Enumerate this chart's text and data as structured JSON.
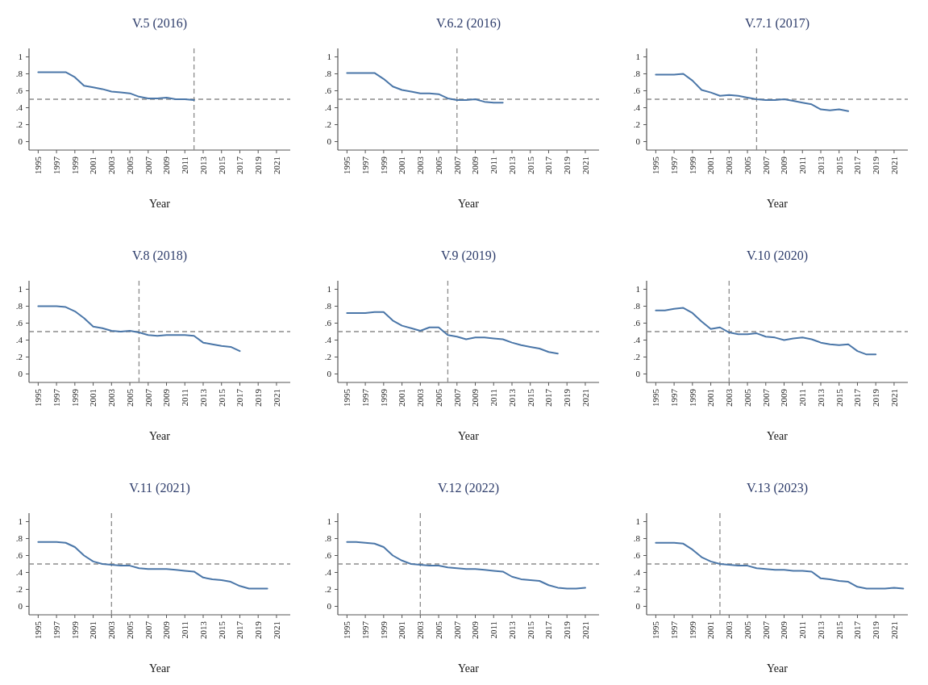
{
  "chart_data": [
    {
      "type": "line",
      "title": "V.5 (2016)",
      "xlabel": "Year",
      "x": [
        1995,
        1996,
        1997,
        1998,
        1999,
        2000,
        2001,
        2002,
        2003,
        2004,
        2005,
        2006,
        2007,
        2008,
        2009,
        2010,
        2011,
        2012
      ],
      "series": [
        {
          "color": "#4a76a8",
          "values": [
            0.82,
            0.82,
            0.82,
            0.82,
            0.76,
            0.66,
            0.64,
            0.62,
            0.59,
            0.58,
            0.57,
            0.53,
            0.51,
            0.51,
            0.52,
            0.5,
            0.5,
            0.49
          ]
        }
      ],
      "xlim": [
        1994,
        2022.5
      ],
      "xticks": [
        1995,
        1997,
        1999,
        2001,
        2003,
        2005,
        2007,
        2009,
        2011,
        2013,
        2015,
        2017,
        2019,
        2021
      ],
      "ylim": [
        -0.1,
        1.1
      ],
      "yticks": [
        {
          "value": 0,
          "label": "0"
        },
        {
          "value": 0.2,
          "label": ".2"
        },
        {
          "value": 0.4,
          "label": ".4"
        },
        {
          "value": 0.6,
          "label": ".6"
        },
        {
          "value": 0.8,
          "label": ".8"
        },
        {
          "value": 1,
          "label": "1"
        }
      ],
      "ref_lines": [
        {
          "axis": "y",
          "value": 0.5,
          "color": "#8c8c8c",
          "line_style": "dashed"
        },
        {
          "axis": "x",
          "value": 2012,
          "color": "#8c8c8c",
          "line_style": "dashed"
        }
      ],
      "grid": false
    },
    {
      "type": "line",
      "title": "V.6.2 (2016)",
      "xlabel": "Year",
      "x": [
        1995,
        1996,
        1997,
        1998,
        1999,
        2000,
        2001,
        2002,
        2003,
        2004,
        2005,
        2006,
        2007,
        2008,
        2009,
        2010,
        2011,
        2012
      ],
      "series": [
        {
          "color": "#4a76a8",
          "values": [
            0.81,
            0.81,
            0.81,
            0.81,
            0.74,
            0.65,
            0.61,
            0.59,
            0.57,
            0.57,
            0.56,
            0.51,
            0.49,
            0.49,
            0.5,
            0.47,
            0.46,
            0.46
          ]
        }
      ],
      "xlim": [
        1994,
        2022.5
      ],
      "xticks": [
        1995,
        1997,
        1999,
        2001,
        2003,
        2005,
        2007,
        2009,
        2011,
        2013,
        2015,
        2017,
        2019,
        2021
      ],
      "ylim": [
        -0.1,
        1.1
      ],
      "yticks": [
        {
          "value": 0,
          "label": "0"
        },
        {
          "value": 0.2,
          "label": ".2"
        },
        {
          "value": 0.4,
          "label": ".4"
        },
        {
          "value": 0.6,
          "label": ".6"
        },
        {
          "value": 0.8,
          "label": ".8"
        },
        {
          "value": 1,
          "label": "1"
        }
      ],
      "ref_lines": [
        {
          "axis": "y",
          "value": 0.5,
          "color": "#8c8c8c",
          "line_style": "dashed"
        },
        {
          "axis": "x",
          "value": 2007,
          "color": "#8c8c8c",
          "line_style": "dashed"
        }
      ],
      "grid": false
    },
    {
      "type": "line",
      "title": "V.7.1 (2017)",
      "xlabel": "Year",
      "x": [
        1995,
        1996,
        1997,
        1998,
        1999,
        2000,
        2001,
        2002,
        2003,
        2004,
        2005,
        2006,
        2007,
        2008,
        2009,
        2010,
        2011,
        2012,
        2013,
        2014,
        2015,
        2016
      ],
      "series": [
        {
          "color": "#4a76a8",
          "values": [
            0.79,
            0.79,
            0.79,
            0.8,
            0.72,
            0.61,
            0.58,
            0.54,
            0.55,
            0.54,
            0.52,
            0.5,
            0.49,
            0.49,
            0.5,
            0.48,
            0.46,
            0.44,
            0.38,
            0.37,
            0.38,
            0.36
          ]
        }
      ],
      "xlim": [
        1994,
        2022.5
      ],
      "xticks": [
        1995,
        1997,
        1999,
        2001,
        2003,
        2005,
        2007,
        2009,
        2011,
        2013,
        2015,
        2017,
        2019,
        2021
      ],
      "ylim": [
        -0.1,
        1.1
      ],
      "yticks": [
        {
          "value": 0,
          "label": "0"
        },
        {
          "value": 0.2,
          "label": ".2"
        },
        {
          "value": 0.4,
          "label": ".4"
        },
        {
          "value": 0.6,
          "label": ".6"
        },
        {
          "value": 0.8,
          "label": ".8"
        },
        {
          "value": 1,
          "label": "1"
        }
      ],
      "ref_lines": [
        {
          "axis": "y",
          "value": 0.5,
          "color": "#8c8c8c",
          "line_style": "dashed"
        },
        {
          "axis": "x",
          "value": 2006,
          "color": "#8c8c8c",
          "line_style": "dashed"
        }
      ],
      "grid": false
    },
    {
      "type": "line",
      "title": "V.8 (2018)",
      "xlabel": "Year",
      "x": [
        1995,
        1996,
        1997,
        1998,
        1999,
        2000,
        2001,
        2002,
        2003,
        2004,
        2005,
        2006,
        2007,
        2008,
        2009,
        2010,
        2011,
        2012,
        2013,
        2014,
        2015,
        2016,
        2017
      ],
      "series": [
        {
          "color": "#4a76a8",
          "values": [
            0.8,
            0.8,
            0.8,
            0.79,
            0.74,
            0.66,
            0.56,
            0.54,
            0.51,
            0.5,
            0.51,
            0.49,
            0.46,
            0.45,
            0.46,
            0.46,
            0.46,
            0.45,
            0.37,
            0.35,
            0.33,
            0.32,
            0.27
          ]
        }
      ],
      "xlim": [
        1994,
        2022.5
      ],
      "xticks": [
        1995,
        1997,
        1999,
        2001,
        2003,
        2005,
        2007,
        2009,
        2011,
        2013,
        2015,
        2017,
        2019,
        2021
      ],
      "ylim": [
        -0.1,
        1.1
      ],
      "yticks": [
        {
          "value": 0,
          "label": "0"
        },
        {
          "value": 0.2,
          "label": ".2"
        },
        {
          "value": 0.4,
          "label": ".4"
        },
        {
          "value": 0.6,
          "label": ".6"
        },
        {
          "value": 0.8,
          "label": ".8"
        },
        {
          "value": 1,
          "label": "1"
        }
      ],
      "ref_lines": [
        {
          "axis": "y",
          "value": 0.5,
          "color": "#8c8c8c",
          "line_style": "dashed"
        },
        {
          "axis": "x",
          "value": 2006,
          "color": "#8c8c8c",
          "line_style": "dashed"
        }
      ],
      "grid": false
    },
    {
      "type": "line",
      "title": "V.9 (2019)",
      "xlabel": "Year",
      "x": [
        1995,
        1996,
        1997,
        1998,
        1999,
        2000,
        2001,
        2002,
        2003,
        2004,
        2005,
        2006,
        2007,
        2008,
        2009,
        2010,
        2011,
        2012,
        2013,
        2014,
        2015,
        2016,
        2017,
        2018
      ],
      "series": [
        {
          "color": "#4a76a8",
          "values": [
            0.72,
            0.72,
            0.72,
            0.73,
            0.73,
            0.63,
            0.57,
            0.54,
            0.51,
            0.55,
            0.55,
            0.46,
            0.44,
            0.41,
            0.43,
            0.43,
            0.42,
            0.41,
            0.37,
            0.34,
            0.32,
            0.3,
            0.26,
            0.24
          ]
        }
      ],
      "xlim": [
        1994,
        2022.5
      ],
      "xticks": [
        1995,
        1997,
        1999,
        2001,
        2003,
        2005,
        2007,
        2009,
        2011,
        2013,
        2015,
        2017,
        2019,
        2021
      ],
      "ylim": [
        -0.1,
        1.1
      ],
      "yticks": [
        {
          "value": 0,
          "label": "0"
        },
        {
          "value": 0.2,
          "label": ".2"
        },
        {
          "value": 0.4,
          "label": ".4"
        },
        {
          "value": 0.6,
          "label": ".6"
        },
        {
          "value": 0.8,
          "label": ".8"
        },
        {
          "value": 1,
          "label": "1"
        }
      ],
      "ref_lines": [
        {
          "axis": "y",
          "value": 0.5,
          "color": "#8c8c8c",
          "line_style": "dashed"
        },
        {
          "axis": "x",
          "value": 2006,
          "color": "#8c8c8c",
          "line_style": "dashed"
        }
      ],
      "grid": false
    },
    {
      "type": "line",
      "title": "V.10 (2020)",
      "xlabel": "Year",
      "x": [
        1995,
        1996,
        1997,
        1998,
        1999,
        2000,
        2001,
        2002,
        2003,
        2004,
        2005,
        2006,
        2007,
        2008,
        2009,
        2010,
        2011,
        2012,
        2013,
        2014,
        2015,
        2016,
        2017,
        2018,
        2019
      ],
      "series": [
        {
          "color": "#4a76a8",
          "values": [
            0.75,
            0.75,
            0.77,
            0.78,
            0.72,
            0.62,
            0.53,
            0.55,
            0.49,
            0.47,
            0.47,
            0.48,
            0.44,
            0.43,
            0.4,
            0.42,
            0.43,
            0.41,
            0.37,
            0.35,
            0.34,
            0.35,
            0.27,
            0.23,
            0.23
          ]
        }
      ],
      "xlim": [
        1994,
        2022.5
      ],
      "xticks": [
        1995,
        1997,
        1999,
        2001,
        2003,
        2005,
        2007,
        2009,
        2011,
        2013,
        2015,
        2017,
        2019,
        2021
      ],
      "ylim": [
        -0.1,
        1.1
      ],
      "yticks": [
        {
          "value": 0,
          "label": "0"
        },
        {
          "value": 0.2,
          "label": ".2"
        },
        {
          "value": 0.4,
          "label": ".4"
        },
        {
          "value": 0.6,
          "label": ".6"
        },
        {
          "value": 0.8,
          "label": ".8"
        },
        {
          "value": 1,
          "label": "1"
        }
      ],
      "ref_lines": [
        {
          "axis": "y",
          "value": 0.5,
          "color": "#8c8c8c",
          "line_style": "dashed"
        },
        {
          "axis": "x",
          "value": 2003,
          "color": "#8c8c8c",
          "line_style": "dashed"
        }
      ],
      "grid": false
    },
    {
      "type": "line",
      "title": "V.11 (2021)",
      "xlabel": "Year",
      "x": [
        1995,
        1996,
        1997,
        1998,
        1999,
        2000,
        2001,
        2002,
        2003,
        2004,
        2005,
        2006,
        2007,
        2008,
        2009,
        2010,
        2011,
        2012,
        2013,
        2014,
        2015,
        2016,
        2017,
        2018,
        2019,
        2020
      ],
      "series": [
        {
          "color": "#4a76a8",
          "values": [
            0.76,
            0.76,
            0.76,
            0.75,
            0.7,
            0.6,
            0.53,
            0.5,
            0.49,
            0.48,
            0.48,
            0.45,
            0.44,
            0.44,
            0.44,
            0.43,
            0.42,
            0.41,
            0.34,
            0.32,
            0.31,
            0.29,
            0.24,
            0.21,
            0.21,
            0.21
          ]
        }
      ],
      "xlim": [
        1994,
        2022.5
      ],
      "xticks": [
        1995,
        1997,
        1999,
        2001,
        2003,
        2005,
        2007,
        2009,
        2011,
        2013,
        2015,
        2017,
        2019,
        2021
      ],
      "ylim": [
        -0.1,
        1.1
      ],
      "yticks": [
        {
          "value": 0,
          "label": "0"
        },
        {
          "value": 0.2,
          "label": ".2"
        },
        {
          "value": 0.4,
          "label": ".4"
        },
        {
          "value": 0.6,
          "label": ".6"
        },
        {
          "value": 0.8,
          "label": ".8"
        },
        {
          "value": 1,
          "label": "1"
        }
      ],
      "ref_lines": [
        {
          "axis": "y",
          "value": 0.5,
          "color": "#8c8c8c",
          "line_style": "dashed"
        },
        {
          "axis": "x",
          "value": 2003,
          "color": "#8c8c8c",
          "line_style": "dashed"
        }
      ],
      "grid": false
    },
    {
      "type": "line",
      "title": "V.12 (2022)",
      "xlabel": "Year",
      "x": [
        1995,
        1996,
        1997,
        1998,
        1999,
        2000,
        2001,
        2002,
        2003,
        2004,
        2005,
        2006,
        2007,
        2008,
        2009,
        2010,
        2011,
        2012,
        2013,
        2014,
        2015,
        2016,
        2017,
        2018,
        2019,
        2020,
        2021
      ],
      "series": [
        {
          "color": "#4a76a8",
          "values": [
            0.76,
            0.76,
            0.75,
            0.74,
            0.7,
            0.6,
            0.54,
            0.5,
            0.49,
            0.48,
            0.48,
            0.46,
            0.45,
            0.44,
            0.44,
            0.43,
            0.42,
            0.41,
            0.35,
            0.32,
            0.31,
            0.3,
            0.25,
            0.22,
            0.21,
            0.21,
            0.22
          ]
        }
      ],
      "xlim": [
        1994,
        2022.5
      ],
      "xticks": [
        1995,
        1997,
        1999,
        2001,
        2003,
        2005,
        2007,
        2009,
        2011,
        2013,
        2015,
        2017,
        2019,
        2021
      ],
      "ylim": [
        -0.1,
        1.1
      ],
      "yticks": [
        {
          "value": 0,
          "label": "0"
        },
        {
          "value": 0.2,
          "label": ".2"
        },
        {
          "value": 0.4,
          "label": ".4"
        },
        {
          "value": 0.6,
          "label": ".6"
        },
        {
          "value": 0.8,
          "label": ".8"
        },
        {
          "value": 1,
          "label": "1"
        }
      ],
      "ref_lines": [
        {
          "axis": "y",
          "value": 0.5,
          "color": "#8c8c8c",
          "line_style": "dashed"
        },
        {
          "axis": "x",
          "value": 2003,
          "color": "#8c8c8c",
          "line_style": "dashed"
        }
      ],
      "grid": false
    },
    {
      "type": "line",
      "title": "V.13 (2023)",
      "xlabel": "Year",
      "x": [
        1995,
        1996,
        1997,
        1998,
        1999,
        2000,
        2001,
        2002,
        2003,
        2004,
        2005,
        2006,
        2007,
        2008,
        2009,
        2010,
        2011,
        2012,
        2013,
        2014,
        2015,
        2016,
        2017,
        2018,
        2019,
        2020,
        2021,
        2022
      ],
      "series": [
        {
          "color": "#4a76a8",
          "values": [
            0.75,
            0.75,
            0.75,
            0.74,
            0.67,
            0.58,
            0.53,
            0.5,
            0.49,
            0.48,
            0.48,
            0.45,
            0.44,
            0.43,
            0.43,
            0.42,
            0.42,
            0.41,
            0.33,
            0.32,
            0.3,
            0.29,
            0.23,
            0.21,
            0.21,
            0.21,
            0.22,
            0.21
          ]
        }
      ],
      "xlim": [
        1994,
        2022.5
      ],
      "xticks": [
        1995,
        1997,
        1999,
        2001,
        2003,
        2005,
        2007,
        2009,
        2011,
        2013,
        2015,
        2017,
        2019,
        2021
      ],
      "ylim": [
        -0.1,
        1.1
      ],
      "yticks": [
        {
          "value": 0,
          "label": "0"
        },
        {
          "value": 0.2,
          "label": ".2"
        },
        {
          "value": 0.4,
          "label": ".4"
        },
        {
          "value": 0.6,
          "label": ".6"
        },
        {
          "value": 0.8,
          "label": ".8"
        },
        {
          "value": 1,
          "label": "1"
        }
      ],
      "ref_lines": [
        {
          "axis": "y",
          "value": 0.5,
          "color": "#8c8c8c",
          "line_style": "dashed"
        },
        {
          "axis": "x",
          "value": 2002,
          "color": "#8c8c8c",
          "line_style": "dashed"
        }
      ],
      "grid": false
    }
  ]
}
